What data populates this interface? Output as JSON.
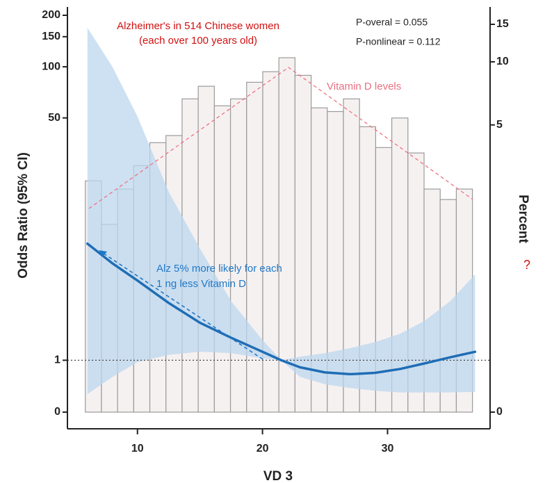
{
  "chart_data": {
    "type": "combo",
    "title": "Alzheimer's in 514 Chinese women",
    "subtitle": "(each over 100 years old)",
    "annotations": [
      "P-overal = 0.055",
      "P-nonlinear = 0.112",
      "Vitamin D levels",
      "Alz 5% more likely for each",
      "1 ng less Vitamin D",
      "?"
    ],
    "x_label": "VD 3",
    "y_label": "Odds Ratio (95% CI)",
    "y2_label": "Percent",
    "xlim": [
      4.4,
      38.2
    ],
    "xticks": [
      10,
      20,
      30
    ],
    "ylim": [
      0,
      200
    ],
    "yticks": [
      0,
      1,
      50,
      100,
      150,
      200
    ],
    "yscale": "log1p",
    "y2lim": [
      0,
      15
    ],
    "y2ticks": [
      0,
      5,
      10,
      15
    ],
    "y2scale": "log1p",
    "reference_line": 1,
    "histogram": {
      "axis": "y2",
      "color": "#f6f1f1",
      "bins": [
        5.83,
        7.12,
        8.41,
        9.7,
        10.99,
        12.28,
        13.57,
        14.86,
        16.15,
        17.44,
        18.73,
        20.02,
        21.31,
        22.6,
        23.89,
        25.18,
        26.47,
        27.76,
        29.05,
        30.34,
        31.63,
        32.92,
        34.21,
        35.5,
        36.79
      ],
      "values": [
        2.65,
        1.58,
        2.41,
        3.16,
        4.1,
        4.44,
        6.67,
        7.66,
        6.18,
        6.67,
        8.0,
        8.98,
        10.45,
        8.63,
        6.04,
        5.8,
        6.67,
        4.9,
        3.88,
        5.4,
        3.65,
        2.41,
        2.13,
        2.41
      ]
    },
    "curve": {
      "color": "#1f6db5",
      "band_color": "#bcd7ee",
      "x": [
        6,
        8,
        10,
        12.5,
        15,
        17.5,
        20,
        21.5,
        23,
        25,
        27,
        29,
        31,
        33,
        35,
        37
      ],
      "values": [
        8.5,
        6.3,
        4.8,
        3.3,
        2.3,
        1.7,
        1.24,
        1.0,
        0.82,
        0.7,
        0.66,
        0.69,
        0.78,
        0.92,
        1.08,
        1.24
      ],
      "upper": [
        169,
        100,
        51,
        18,
        7.9,
        3.4,
        1.62,
        1.0,
        1.1,
        1.2,
        1.35,
        1.55,
        1.85,
        2.4,
        3.4,
        5.3
      ],
      "lower": [
        0.27,
        0.6,
        0.95,
        1.15,
        1.24,
        1.2,
        1.05,
        1.0,
        0.6,
        0.45,
        0.38,
        0.33,
        0.3,
        0.3,
        0.3,
        0.31
      ]
    }
  }
}
